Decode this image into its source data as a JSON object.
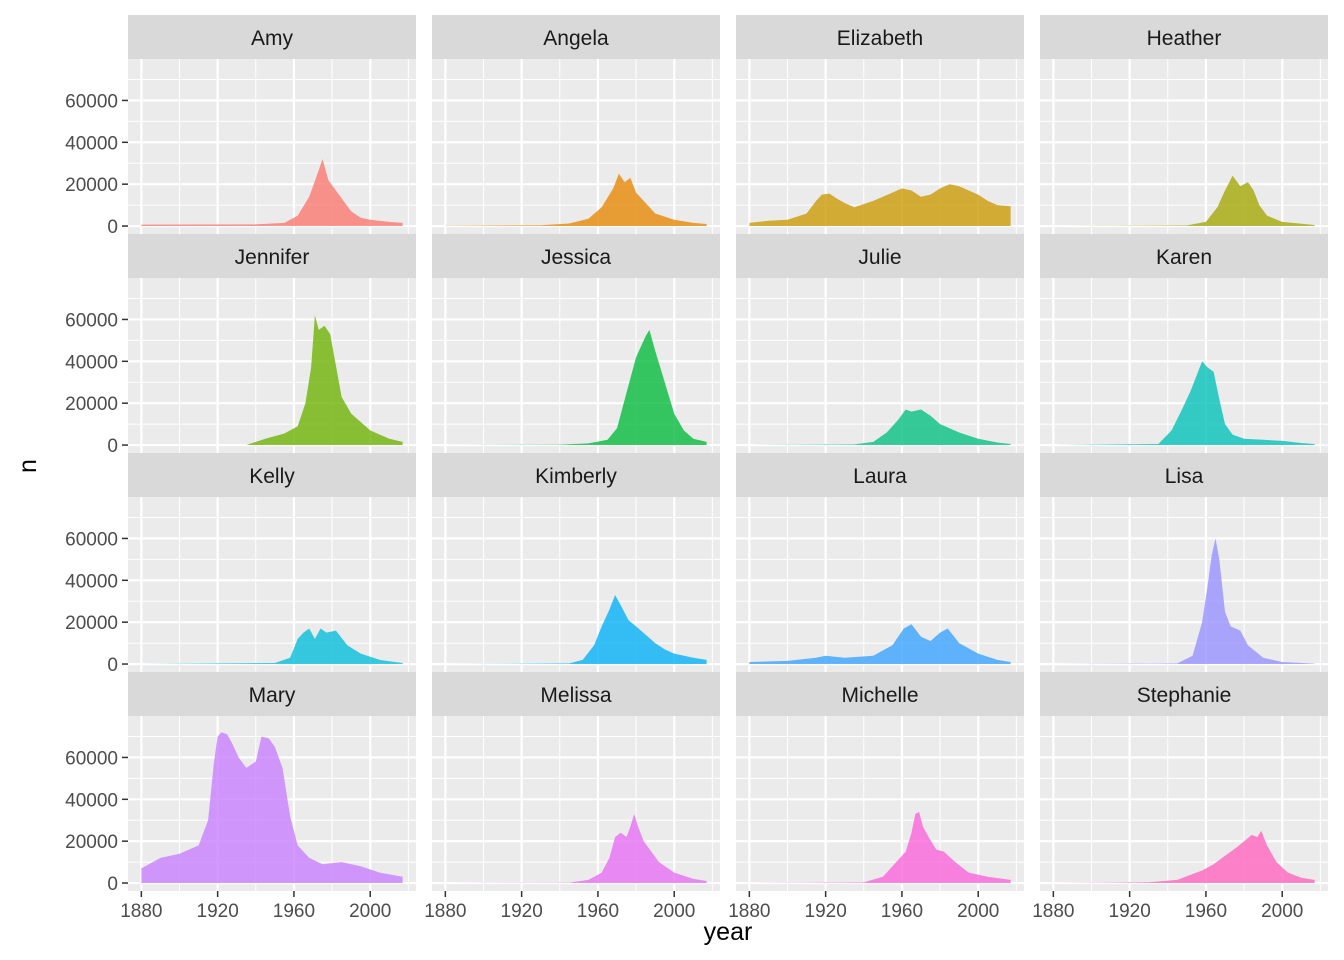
{
  "chart_data": {
    "type": "area",
    "xlabel": "year",
    "ylabel": "n",
    "xlim": [
      1873,
      2024
    ],
    "ylim": [
      -3800,
      79800
    ],
    "x_ticks": [
      1880,
      1920,
      1960,
      2000
    ],
    "y_ticks": [
      0,
      20000,
      40000,
      60000
    ],
    "facet_layout": {
      "rows": 4,
      "cols": 4
    },
    "panel_background": "#ebebeb",
    "strip_background": "#d9d9d9",
    "grid_color": "#ffffff",
    "grid": true,
    "legend": "none",
    "panels": [
      {
        "name": "Amy",
        "color": "#f8766d",
        "x": [
          1880,
          1940,
          1955,
          1962,
          1968,
          1972,
          1975,
          1978,
          1982,
          1986,
          1990,
          1995,
          2000,
          2010,
          2017
        ],
        "y": [
          700,
          800,
          1500,
          5000,
          14000,
          24000,
          32000,
          22000,
          17000,
          12000,
          7000,
          4000,
          3000,
          2000,
          1500
        ]
      },
      {
        "name": "Angela",
        "color": "#e58700",
        "x": [
          1880,
          1930,
          1945,
          1955,
          1962,
          1968,
          1971,
          1974,
          1977,
          1980,
          1985,
          1990,
          2000,
          2010,
          2017
        ],
        "y": [
          100,
          400,
          1200,
          3500,
          9000,
          18000,
          25000,
          21000,
          23000,
          16000,
          11000,
          6000,
          3000,
          1500,
          1000
        ]
      },
      {
        "name": "Elizabeth",
        "color": "#c99800",
        "x": [
          1880,
          1890,
          1900,
          1910,
          1915,
          1918,
          1922,
          1926,
          1930,
          1935,
          1945,
          1955,
          1960,
          1965,
          1970,
          1975,
          1980,
          1985,
          1990,
          1995,
          2000,
          2005,
          2010,
          2017
        ],
        "y": [
          1500,
          2500,
          3000,
          6000,
          12000,
          15000,
          15500,
          13000,
          11000,
          9000,
          12000,
          16000,
          18000,
          17000,
          14000,
          15000,
          18000,
          20000,
          19000,
          17000,
          15000,
          12000,
          10000,
          9500
        ]
      },
      {
        "name": "Heather",
        "color": "#a3a500",
        "x": [
          1880,
          1950,
          1960,
          1966,
          1970,
          1974,
          1978,
          1982,
          1985,
          1988,
          1992,
          2000,
          2017
        ],
        "y": [
          0,
          300,
          2000,
          9000,
          17000,
          24000,
          19000,
          21000,
          17000,
          10000,
          5000,
          2000,
          500
        ]
      },
      {
        "name": "Jennifer",
        "color": "#6bb100",
        "x": [
          1880,
          1935,
          1945,
          1955,
          1962,
          1966,
          1969,
          1971,
          1973,
          1976,
          1979,
          1982,
          1985,
          1990,
          1995,
          2000,
          2010,
          2017
        ],
        "y": [
          0,
          0,
          3000,
          5500,
          9000,
          20000,
          37000,
          62000,
          55000,
          57000,
          53000,
          38000,
          23000,
          15000,
          11000,
          7000,
          3000,
          1500
        ]
      },
      {
        "name": "Jessica",
        "color": "#00ba38",
        "x": [
          1880,
          1940,
          1955,
          1965,
          1970,
          1975,
          1980,
          1985,
          1987,
          1990,
          1995,
          2000,
          2005,
          2010,
          2017
        ],
        "y": [
          0,
          200,
          800,
          2500,
          8000,
          25000,
          42000,
          52000,
          55000,
          45000,
          30000,
          15000,
          7000,
          3000,
          1500
        ]
      },
      {
        "name": "Julie",
        "color": "#00bf7d",
        "x": [
          1880,
          1935,
          1945,
          1952,
          1958,
          1962,
          1965,
          1970,
          1975,
          1980,
          1990,
          2000,
          2010,
          2017
        ],
        "y": [
          0,
          300,
          1500,
          6000,
          12000,
          17000,
          16000,
          17000,
          14000,
          10000,
          6000,
          3000,
          1200,
          500
        ]
      },
      {
        "name": "Karen",
        "color": "#00c0b8",
        "x": [
          1880,
          1935,
          1942,
          1948,
          1952,
          1955,
          1958,
          1961,
          1964,
          1967,
          1970,
          1974,
          1980,
          1990,
          2000,
          2010,
          2017
        ],
        "y": [
          0,
          500,
          7000,
          18000,
          26000,
          33000,
          40000,
          37000,
          35000,
          22000,
          10000,
          5000,
          3000,
          2500,
          2000,
          1000,
          500
        ]
      },
      {
        "name": "Kelly",
        "color": "#00bcd8",
        "x": [
          1880,
          1950,
          1958,
          1962,
          1965,
          1968,
          1971,
          1974,
          1977,
          1982,
          1988,
          1995,
          2005,
          2017
        ],
        "y": [
          0,
          500,
          3000,
          12000,
          15000,
          17000,
          12000,
          17000,
          15000,
          16000,
          9000,
          5000,
          2000,
          500
        ]
      },
      {
        "name": "Kimberly",
        "color": "#00b0f6",
        "x": [
          1880,
          1945,
          1952,
          1958,
          1962,
          1966,
          1969,
          1972,
          1976,
          1980,
          1985,
          1990,
          1995,
          2000,
          2010,
          2017
        ],
        "y": [
          0,
          300,
          2000,
          9000,
          18000,
          26000,
          33000,
          28000,
          21000,
          18000,
          14000,
          10000,
          7000,
          5000,
          3000,
          2000
        ]
      },
      {
        "name": "Laura",
        "color": "#35a2ff",
        "x": [
          1880,
          1900,
          1915,
          1920,
          1930,
          1945,
          1955,
          1961,
          1965,
          1970,
          1975,
          1980,
          1984,
          1990,
          2000,
          2010,
          2017
        ],
        "y": [
          1000,
          1500,
          3000,
          4000,
          3000,
          4000,
          9000,
          17000,
          19000,
          13000,
          11000,
          15000,
          17000,
          10000,
          5000,
          2000,
          1000
        ]
      },
      {
        "name": "Lisa",
        "color": "#9590ff",
        "x": [
          1880,
          1945,
          1953,
          1958,
          1961,
          1963,
          1965,
          1967,
          1970,
          1973,
          1978,
          1982,
          1990,
          2000,
          2017
        ],
        "y": [
          0,
          300,
          4000,
          20000,
          38000,
          52000,
          60000,
          50000,
          25000,
          18000,
          16000,
          9000,
          3000,
          1000,
          200
        ]
      },
      {
        "name": "Mary",
        "color": "#c77cff",
        "x": [
          1880,
          1890,
          1900,
          1910,
          1915,
          1918,
          1920,
          1922,
          1925,
          1928,
          1931,
          1935,
          1940,
          1943,
          1947,
          1950,
          1954,
          1958,
          1962,
          1968,
          1975,
          1985,
          1995,
          2005,
          2017
        ],
        "y": [
          7000,
          12000,
          14000,
          18000,
          30000,
          57000,
          70000,
          72000,
          71000,
          66000,
          60000,
          55000,
          58000,
          70000,
          69000,
          65000,
          55000,
          32000,
          18000,
          12000,
          9000,
          10000,
          8000,
          5000,
          3000
        ]
      },
      {
        "name": "Melissa",
        "color": "#e76bf3",
        "x": [
          1880,
          1945,
          1955,
          1962,
          1966,
          1969,
          1972,
          1975,
          1977,
          1979,
          1981,
          1984,
          1988,
          1992,
          2000,
          2010,
          2017
        ],
        "y": [
          0,
          200,
          1500,
          5000,
          12000,
          22000,
          24000,
          22000,
          27000,
          33000,
          27000,
          20000,
          15000,
          10000,
          5000,
          2000,
          1000
        ]
      },
      {
        "name": "Michelle",
        "color": "#fa62db",
        "x": [
          1880,
          1940,
          1950,
          1958,
          1962,
          1965,
          1967,
          1969,
          1971,
          1974,
          1978,
          1982,
          1988,
          1995,
          2005,
          2017
        ],
        "y": [
          0,
          300,
          3000,
          11000,
          15000,
          24000,
          33000,
          34000,
          27000,
          22000,
          16000,
          15000,
          10000,
          5000,
          3000,
          1500
        ]
      },
      {
        "name": "Stephanie",
        "color": "#ff62bc",
        "x": [
          1880,
          1910,
          1930,
          1945,
          1952,
          1958,
          1964,
          1970,
          1976,
          1980,
          1984,
          1987,
          1989,
          1992,
          1997,
          2003,
          2010,
          2017
        ],
        "y": [
          0,
          200,
          400,
          1500,
          4000,
          6000,
          9000,
          13000,
          17000,
          20000,
          23000,
          22000,
          25000,
          18000,
          10000,
          5000,
          2500,
          1500
        ]
      }
    ]
  }
}
